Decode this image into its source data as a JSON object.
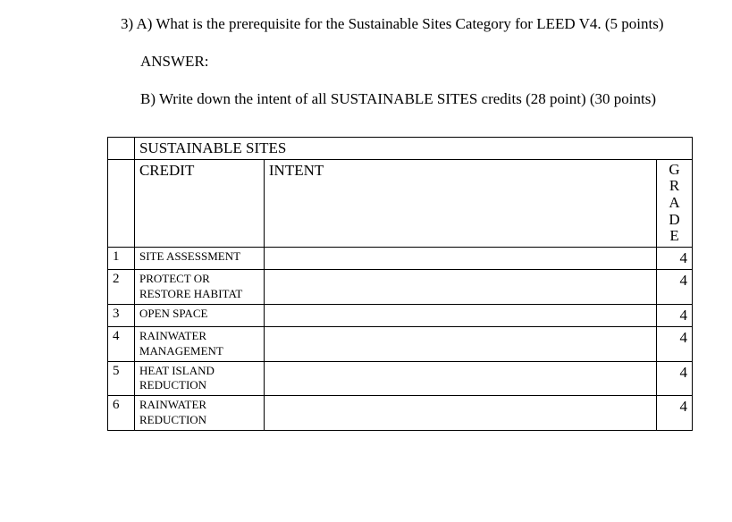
{
  "question": {
    "number": "3)",
    "part_a": "A) What is the prerequisite for the Sustainable Sites Category for LEED V4.  (5 points)",
    "answer_label": "ANSWER:",
    "part_b": "B) Write down the intent of all SUSTAINABLE SITES credits (28 point) (30 points)"
  },
  "table": {
    "title": "SUSTAINABLE SITES",
    "col_credit": "CREDIT",
    "col_intent": "INTENT",
    "col_grade_letters": [
      "G",
      "R",
      "A",
      "D",
      "E"
    ],
    "rows": [
      {
        "num": "1",
        "credit": "SITE ASSESSMENT",
        "intent": "",
        "grade": "4"
      },
      {
        "num": "2",
        "credit": "PROTECT OR RESTORE HABITAT",
        "intent": "",
        "grade": "4"
      },
      {
        "num": "3",
        "credit": "OPEN SPACE",
        "intent": "",
        "grade": "4"
      },
      {
        "num": "4",
        "credit": "RAINWATER MANAGEMENT",
        "intent": "",
        "grade": "4"
      },
      {
        "num": "5",
        "credit": "HEAT ISLAND REDUCTION",
        "intent": "",
        "grade": "4"
      },
      {
        "num": "6",
        "credit": "RAINWATER REDUCTION",
        "intent": "",
        "grade": "4"
      }
    ]
  },
  "colors": {
    "background": "#ffffff",
    "text": "#000000",
    "border": "#000000"
  }
}
